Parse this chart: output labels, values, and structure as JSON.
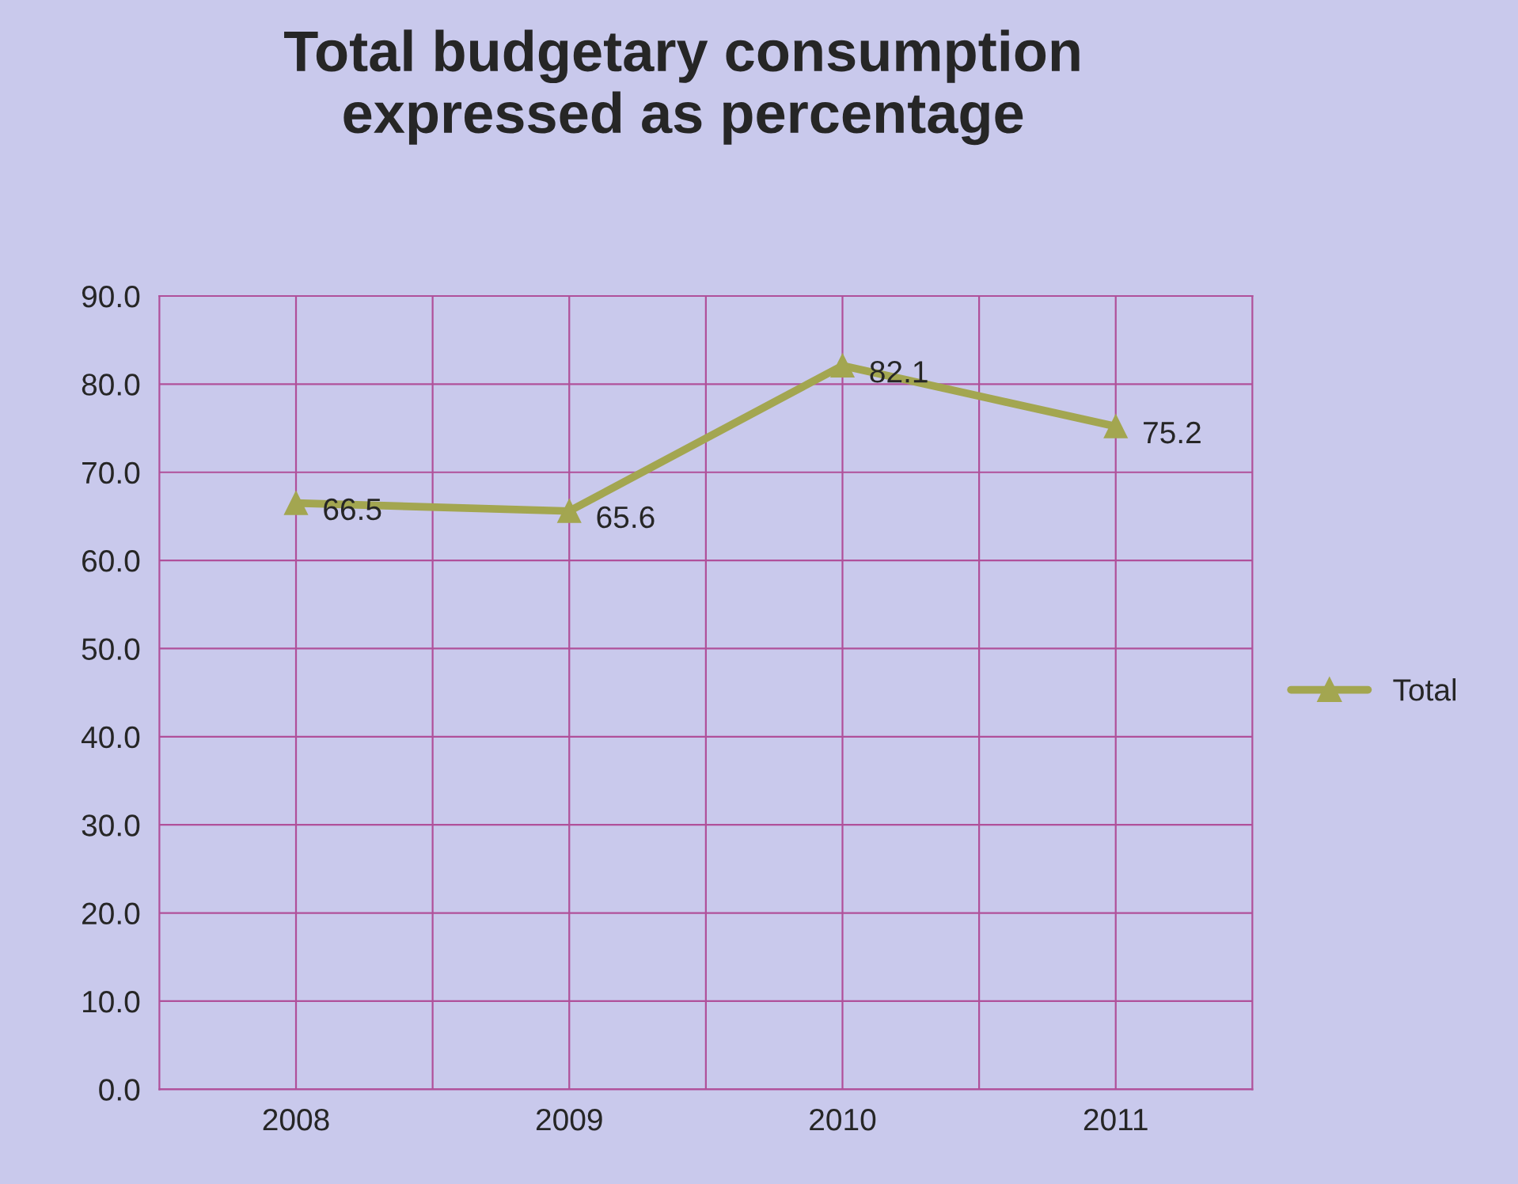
{
  "chart_data": {
    "type": "line",
    "title": "Total budgetary consumption\nexpressed as percentage",
    "categories": [
      "2008",
      "2009",
      "2010",
      "2011"
    ],
    "series": [
      {
        "name": "Total",
        "color": "#a3a650",
        "values": [
          66.5,
          65.6,
          82.1,
          75.2
        ]
      }
    ],
    "ylim": [
      0,
      90
    ],
    "yticks": [
      {
        "value": 0,
        "label": "0.0"
      },
      {
        "value": 10,
        "label": "10.0"
      },
      {
        "value": 20,
        "label": "20.0"
      },
      {
        "value": 30,
        "label": "30.0"
      },
      {
        "value": 40,
        "label": "40.0"
      },
      {
        "value": 50,
        "label": "50.0"
      },
      {
        "value": 60,
        "label": "60.0"
      },
      {
        "value": 70,
        "label": "70.0"
      },
      {
        "value": 80,
        "label": "80.0"
      },
      {
        "value": 90,
        "label": "90.0"
      }
    ],
    "grid": true,
    "legend": "right",
    "marker": "triangle",
    "line_style": "solid",
    "data_labels": true
  }
}
